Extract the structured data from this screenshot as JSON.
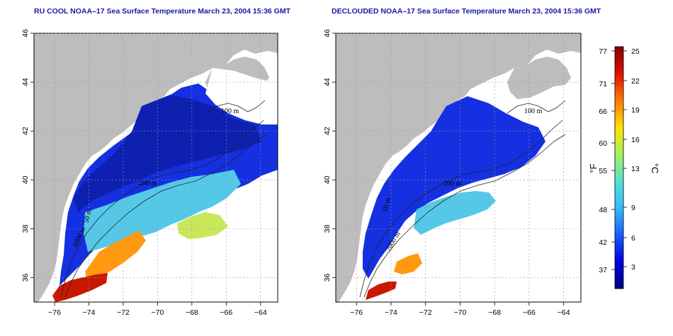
{
  "panels": [
    {
      "id": "left",
      "title": "RU COOL NOAA–17 Sea Surface Temperature March 23, 2004 15:36 GMT",
      "contour_labels": [
        "100 m",
        "200 m",
        "2000 m",
        "50 m"
      ],
      "variant": "cloudy"
    },
    {
      "id": "right",
      "title": "DECLOUDED NOAA–17 Sea Surface Temperature March 23, 2004 15:36 GMT",
      "contour_labels": [
        "100 m",
        "200 m",
        "2000 m",
        "50 m"
      ],
      "variant": "declouded"
    }
  ],
  "axes": {
    "lon_range": [
      -77.2,
      -63.0
    ],
    "lat_range": [
      35.0,
      46.0
    ],
    "lon_ticks": [
      "-76",
      "-74",
      "-72",
      "-70",
      "-68",
      "-66",
      "-64"
    ],
    "lat_ticks": [
      "36",
      "38",
      "40",
      "42",
      "44",
      "46"
    ],
    "grid": "dotted"
  },
  "colorbar": {
    "fahrenheit_label": "°F",
    "celsius_label": "°C",
    "fahrenheit_ticks": [
      "77",
      "71",
      "66",
      "60",
      "55",
      "48",
      "42",
      "37"
    ],
    "celsius_ticks": [
      "25",
      "22",
      "19",
      "16",
      "13",
      "9",
      "6",
      "3"
    ],
    "colors": [
      "#000080",
      "#0000e0",
      "#1a5cff",
      "#33bbff",
      "#55e0d0",
      "#a8f060",
      "#ffe000",
      "#ff7a00",
      "#e01000",
      "#800000"
    ]
  },
  "colors": {
    "land": "#bdbdbd",
    "ocean_cloud": "#ffffff",
    "cold_water": "#1530e0",
    "deep_blue": "#0d20b0",
    "shelf_water": "#2a70ff",
    "slope_water": "#55c8e8",
    "gulf_stream": "#c81800",
    "warm_edge": "#ff9a10",
    "title": "#1a1aa6"
  }
}
